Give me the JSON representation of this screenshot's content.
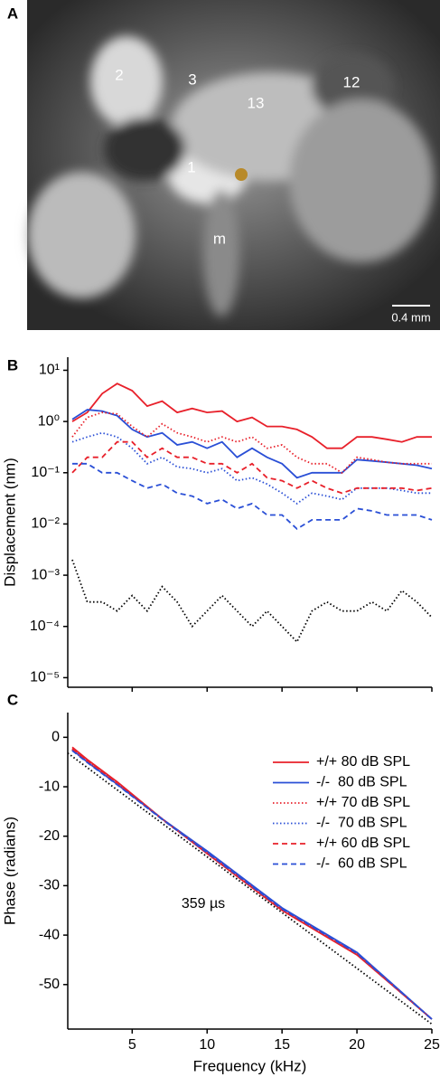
{
  "panel_labels": [
    "A",
    "B",
    "C"
  ],
  "image": {
    "labels": [
      "2",
      "3",
      "13",
      "12",
      "1",
      "m"
    ],
    "scale_bar": "0.4 mm"
  },
  "chart_data": [
    {
      "type": "line",
      "ylabel": "Displacement (nm)",
      "log_y": true,
      "x": [
        1,
        2,
        3,
        4,
        5,
        6,
        7,
        8,
        9,
        10,
        11,
        12,
        13,
        14,
        15,
        16,
        17,
        18,
        19,
        20,
        21,
        22,
        23,
        24,
        25
      ],
      "xlim": [
        0.7,
        25
      ],
      "xticks": [
        5,
        10,
        15,
        20,
        25
      ],
      "xtick_labels": false,
      "ylim": [
        6.5e-06,
        18
      ],
      "yticks": [
        {
          "value": 1e-05,
          "label": "10⁻⁵"
        },
        {
          "value": 0.0001,
          "label": "10⁻⁴"
        },
        {
          "value": 0.001,
          "label": "10⁻³"
        },
        {
          "value": 0.01,
          "label": "10⁻²"
        },
        {
          "value": 0.1,
          "label": "10⁻¹"
        },
        {
          "value": 1,
          "label": "10⁰"
        },
        {
          "value": 10,
          "label": "10¹"
        }
      ],
      "series": [
        {
          "name": "+/+ 80 dB SPL",
          "color": "#e8202a",
          "style": "solid",
          "values": [
            1.0,
            1.5,
            3.5,
            5.5,
            4,
            2,
            2.5,
            1.5,
            1.8,
            1.5,
            1.6,
            1,
            1.2,
            0.8,
            0.8,
            0.7,
            0.5,
            0.3,
            0.3,
            0.5,
            0.5,
            0.45,
            0.4,
            0.5,
            0.5
          ]
        },
        {
          "name": "-/-  80 dB SPL",
          "color": "#2a4fd6",
          "style": "solid",
          "values": [
            1.1,
            1.7,
            1.6,
            1.3,
            0.7,
            0.5,
            0.6,
            0.35,
            0.4,
            0.3,
            0.4,
            0.2,
            0.3,
            0.2,
            0.15,
            0.08,
            0.1,
            0.1,
            0.1,
            0.18,
            0.17,
            0.16,
            0.15,
            0.14,
            0.12
          ]
        },
        {
          "name": "+/+ 70 dB SPL",
          "color": "#e8202a",
          "style": "dotted",
          "values": [
            0.5,
            1.2,
            1.5,
            1.4,
            0.8,
            0.5,
            0.9,
            0.6,
            0.5,
            0.4,
            0.5,
            0.4,
            0.5,
            0.3,
            0.35,
            0.2,
            0.15,
            0.15,
            0.1,
            0.2,
            0.18,
            0.16,
            0.15,
            0.15,
            0.15
          ]
        },
        {
          "name": "-/-  70 dB SPL",
          "color": "#2a4fd6",
          "style": "dotted",
          "values": [
            0.4,
            0.5,
            0.6,
            0.5,
            0.3,
            0.15,
            0.2,
            0.13,
            0.12,
            0.1,
            0.12,
            0.07,
            0.08,
            0.06,
            0.04,
            0.025,
            0.04,
            0.035,
            0.03,
            0.05,
            0.05,
            0.05,
            0.045,
            0.04,
            0.04
          ]
        },
        {
          "name": "+/+ 60 dB SPL",
          "color": "#e8202a",
          "style": "dashed",
          "values": [
            0.1,
            0.2,
            0.2,
            0.4,
            0.4,
            0.2,
            0.3,
            0.2,
            0.2,
            0.15,
            0.15,
            0.1,
            0.15,
            0.08,
            0.07,
            0.05,
            0.07,
            0.05,
            0.04,
            0.05,
            0.05,
            0.05,
            0.05,
            0.045,
            0.05
          ]
        },
        {
          "name": "-/-  60 dB SPL",
          "color": "#2a4fd6",
          "style": "dashed",
          "values": [
            0.15,
            0.15,
            0.1,
            0.1,
            0.07,
            0.05,
            0.06,
            0.04,
            0.035,
            0.025,
            0.03,
            0.02,
            0.025,
            0.015,
            0.015,
            0.008,
            0.012,
            0.012,
            0.012,
            0.02,
            0.018,
            0.015,
            0.015,
            0.015,
            0.012
          ]
        }
      ],
      "noise_floor": {
        "color": "#000000",
        "style": "dotted",
        "values": [
          0.002,
          0.0003,
          0.0003,
          0.0002,
          0.0004,
          0.0002,
          0.0006,
          0.0003,
          0.0001,
          0.0002,
          0.0004,
          0.0002,
          0.0001,
          0.0002,
          0.0001,
          5e-05,
          0.0002,
          0.0003,
          0.0002,
          0.0002,
          0.0003,
          0.0002,
          0.0005,
          0.0003,
          0.00015
        ]
      }
    },
    {
      "type": "line",
      "xlabel": "Frequency (kHz)",
      "ylabel": "Phase (radians)",
      "log_y": false,
      "x": [
        1,
        2,
        4,
        7,
        10,
        15,
        20,
        25
      ],
      "xlim": [
        0.7,
        25
      ],
      "xticks": [
        5,
        10,
        15,
        20,
        25
      ],
      "xtick_labels": true,
      "ylim": [
        -59,
        5
      ],
      "yticks": [
        -50,
        -40,
        -30,
        -20,
        -10,
        0
      ],
      "legend": "upper right",
      "series": [
        {
          "name": "+/+ 80 dB SPL",
          "color": "#e8202a",
          "style": "solid",
          "values": [
            -2,
            -4.5,
            -9,
            -16.5,
            -23.5,
            -35,
            -44,
            -57
          ]
        },
        {
          "name": "-/-  80 dB SPL",
          "color": "#2a4fd6",
          "style": "solid",
          "values": [
            -2.5,
            -5,
            -9.5,
            -16.5,
            -23,
            -34.5,
            -43.5,
            -57
          ]
        },
        {
          "name": "+/+ 70 dB SPL",
          "color": "#e8202a",
          "style": "dotted",
          "values": [
            -2.3,
            -4.8,
            -9.3,
            -16.5,
            -23.3,
            -34.8,
            -43.8,
            -57
          ]
        },
        {
          "name": "-/-  70 dB SPL",
          "color": "#2a4fd6",
          "style": "dotted",
          "values": [
            -2.6,
            -5,
            -9.5,
            -16.5,
            -23.2,
            -34.6,
            -43.6,
            -57
          ]
        },
        {
          "name": "+/+ 60 dB SPL",
          "color": "#e8202a",
          "style": "dashed",
          "values": [
            -2.4,
            -4.9,
            -9.4,
            -16.6,
            -23.4,
            -34.9,
            -43.9,
            -57
          ]
        },
        {
          "name": "-/-  60 dB SPL",
          "color": "#2a4fd6",
          "style": "dashed",
          "values": [
            -2.7,
            -5.1,
            -9.6,
            -16.6,
            -23.3,
            -34.7,
            -43.7,
            -57
          ]
        }
      ],
      "reference_line": {
        "color": "#000000",
        "style": "dotted",
        "x": [
          0.7,
          25
        ],
        "values": [
          -3.2,
          -58
        ]
      },
      "annotation": "359 µs"
    }
  ]
}
